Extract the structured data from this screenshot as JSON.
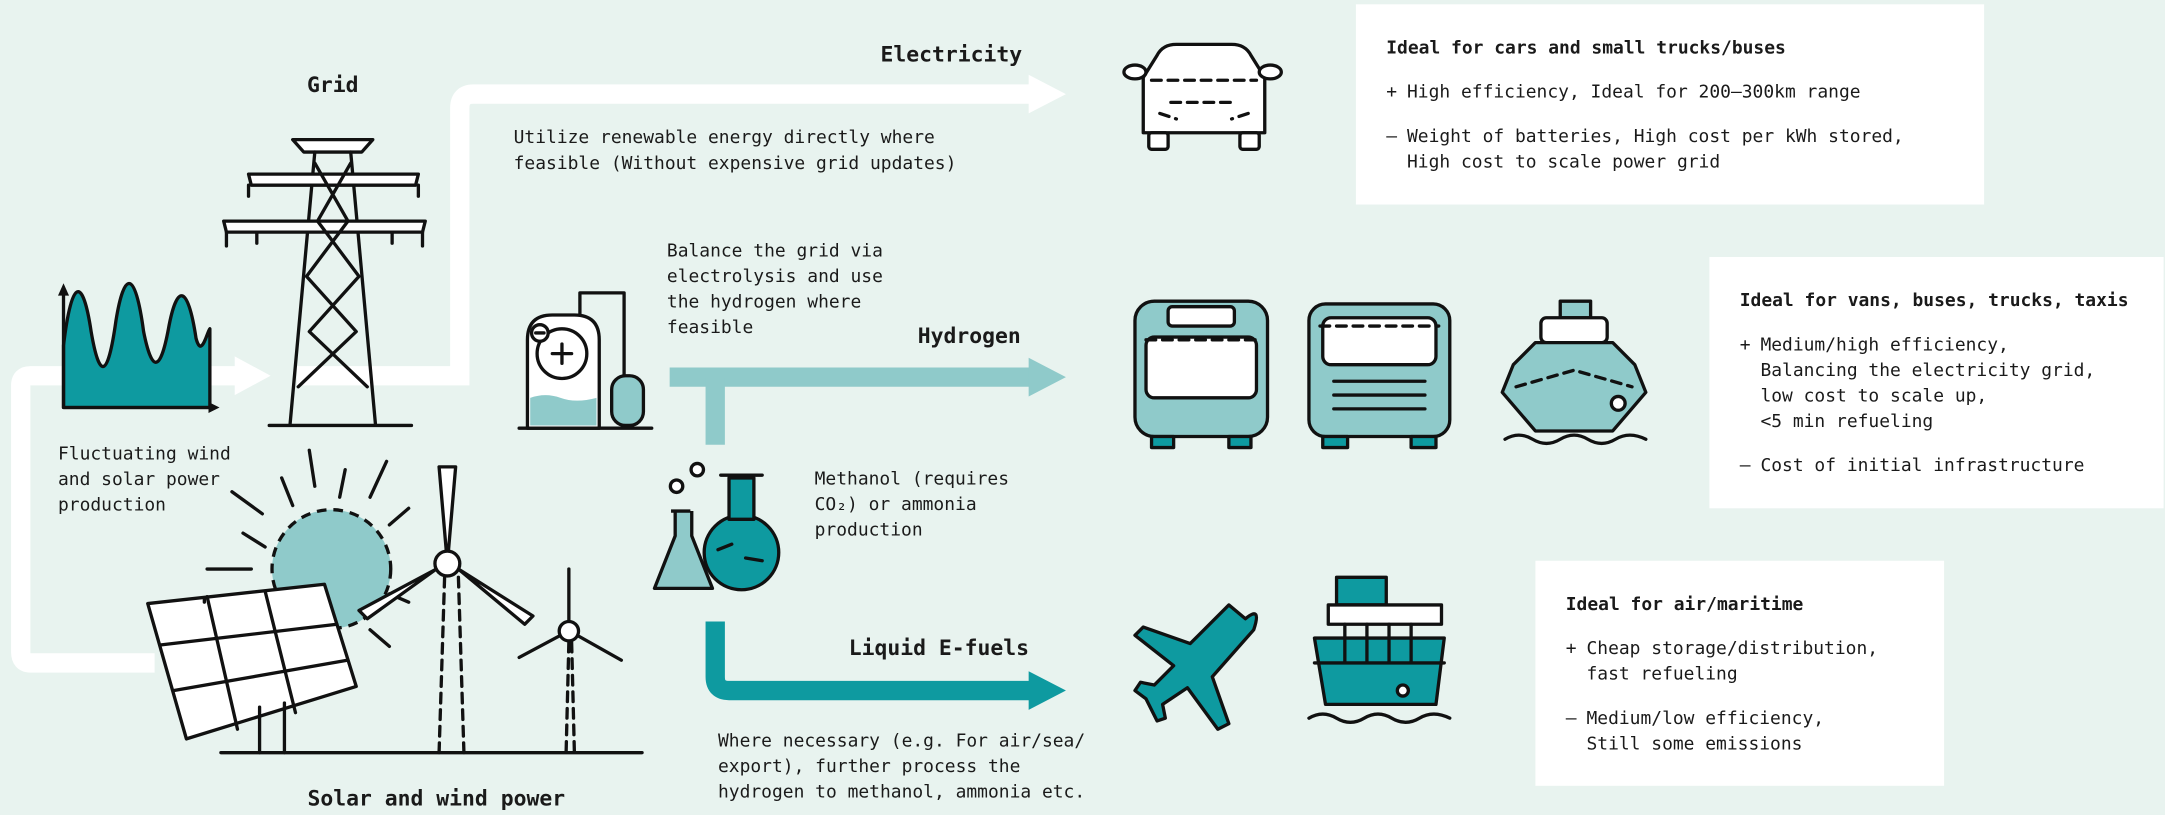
{
  "labels": {
    "grid": "Grid",
    "solar_wind": "Solar and wind power",
    "electricity": "Electricity",
    "hydrogen": "Hydrogen",
    "efuels": "Liquid E-fuels"
  },
  "notes": {
    "fluctuating": [
      "Fluctuating wind",
      "and solar power",
      "production"
    ],
    "electricity": [
      "Utilize renewable energy directly where",
      "feasible (Without expensive grid updates)"
    ],
    "hydrogen": [
      "Balance the grid via",
      "electrolysis and use",
      "the hydrogen where",
      "feasible"
    ],
    "methanol": [
      "Methanol (requires",
      "CO₂) or ammonia",
      "production"
    ],
    "efuels": [
      "Where necessary (e.g. For air/sea/",
      "export), further process the",
      "hydrogen to methanol, ammonia etc."
    ]
  },
  "cards": [
    {
      "title": "Ideal for cars and small trucks/buses",
      "pros": {
        "sign": "+",
        "lines": [
          "High efficiency, Ideal for 200–300km range"
        ]
      },
      "cons": {
        "sign": "–",
        "lines": [
          "Weight of batteries, High cost per kWh stored,",
          "High cost to scale power grid"
        ]
      }
    },
    {
      "title": "Ideal for vans, buses, trucks, taxis",
      "pros": {
        "sign": "+",
        "lines": [
          "Medium/high efficiency,",
          "Balancing the electricity grid,",
          "low cost to scale up,",
          "<5 min refueling"
        ]
      },
      "cons": {
        "sign": "–",
        "lines": [
          "Cost of initial infrastructure"
        ]
      }
    },
    {
      "title": "Ideal for air/maritime",
      "pros": {
        "sign": "+",
        "lines": [
          "Cheap storage/distribution,",
          "fast refueling"
        ]
      },
      "cons": {
        "sign": "–",
        "lines": [
          "Medium/low efficiency,",
          "Still some emissions"
        ]
      }
    }
  ]
}
